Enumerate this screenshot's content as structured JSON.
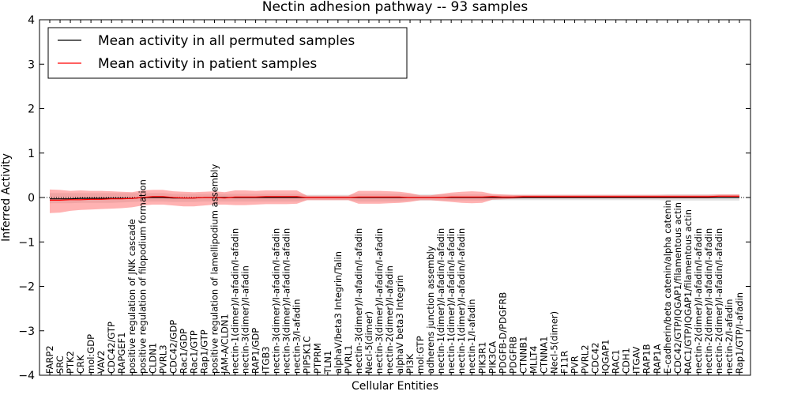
{
  "chart_data": {
    "type": "line",
    "title": "Nectin adhesion pathway -- 93 samples",
    "xlabel": "Cellular Entities",
    "ylabel": "Inferred Activity",
    "ylim": [
      -4,
      4
    ],
    "yticks": [
      "−4",
      "−3",
      "−2",
      "−1",
      "0",
      "1",
      "2",
      "3",
      "4"
    ],
    "legend": {
      "position": "top-left",
      "entries": [
        {
          "name": "Mean activity in all permuted samples",
          "color": "#000000"
        },
        {
          "name": "Mean activity in patient samples",
          "color": "#ff0000"
        }
      ]
    },
    "categories": [
      "FARP2",
      "SRC",
      "PTK2",
      "CRK",
      "mol:GDP",
      "VAV2",
      "CDC42/GTP",
      "RAPGEF1",
      "positive regulation of JNK cascade",
      "positive regulation of filopodium formation",
      "CLDN1",
      "PVRL3",
      "CDC42/GDP",
      "Rac1/GDP",
      "Rac1/GTP",
      "Rap1/GTP",
      "positive regulation of lamellipodium assembly",
      "JAM-A/CLDN1",
      "nectin-1(dimer)/I-afadin/I-afadin",
      "nectin-3(dimer)/I-afadin",
      "RAP1/GDP",
      "ITGB3",
      "nectin-3(dimer)/I-afadin/I-afadin",
      "nectin-3(dimer)/I-afadin/I-afadin",
      "nectin-3/I-afadin",
      "PIP5K1C",
      "PTPRM",
      "TLN1",
      "alphaV/beta3 Integrin/Talin",
      "PVRL1",
      "nectin-3(dimer)/I-afadin/I-afadin",
      "Necl-5(dimer)",
      "nectin-3(dimer)/I-afadin/I-afadin",
      "nectin-2(dimer)/I-afadin",
      "alphaV beta3 Integrin",
      "PI3K",
      "mol:GTP",
      "adherens junction assembly",
      "nectin-1(dimer)/I-afadin/I-afadin",
      "nectin-1(dimer)/I-afadin/I-afadin",
      "nectin-1(dimer)/I-afadin/I-afadin",
      "nectin-1/I-afadin",
      "PIK3R1",
      "PIK3CA",
      "PDGFB-D/PDGFRB",
      "PDGFRB",
      "CTNNB1",
      "MLLT4",
      "CTNNA1",
      "Necl-5(dimer)",
      "F11R",
      "PVR",
      "PVRL2",
      "CDC42",
      "IQGAP1",
      "RAC1",
      "CDH1",
      "ITGAV",
      "RAP1B",
      "RAP1A",
      "E-cadherin/beta catenin/alpha catenin",
      "CDC42/GTP/IQGAP1/filamentous actin",
      "RAC1/GTP/IQGAP1/filamentous actin",
      "nectin-2(dimer)/I-afadin/I-afadin",
      "nectin-2(dimer)/I-afadin/I-afadin",
      "nectin-2(dimer)/I-afadin/I-afadin",
      "nectin-2/I-afadin",
      "Rap1/GTP/I-afadin"
    ],
    "series": [
      {
        "name": "Mean activity in all permuted samples",
        "color": "#000000",
        "values": [
          -0.03,
          -0.03,
          -0.03,
          -0.02,
          -0.02,
          -0.02,
          -0.02,
          -0.02,
          -0.02,
          0.0,
          0.0,
          0.0,
          -0.01,
          -0.01,
          -0.01,
          0.0,
          0.0,
          0.0,
          0.0,
          0.0,
          0.0,
          0.0,
          0.0,
          0.0,
          0.0,
          0.0,
          0.0,
          0.0,
          0.0,
          0.0,
          0.0,
          0.0,
          0.0,
          0.0,
          0.0,
          0.0,
          0.0,
          0.0,
          0.0,
          0.0,
          0.0,
          0.0,
          0.0,
          0.0,
          0.0,
          0.0,
          0.0,
          0.0,
          0.0,
          0.0,
          0.0,
          0.0,
          0.0,
          0.0,
          0.0,
          0.0,
          0.0,
          0.0,
          0.0,
          0.0,
          0.0,
          0.0,
          0.0,
          0.0,
          0.0,
          0.0,
          0.0,
          0.0
        ],
        "band_lower": [
          -0.13,
          -0.13,
          -0.13,
          -0.12,
          -0.12,
          -0.12,
          -0.12,
          -0.11,
          -0.1,
          -0.09,
          -0.09,
          -0.09,
          -0.1,
          -0.1,
          -0.1,
          -0.09,
          -0.09,
          -0.09,
          -0.09,
          -0.09,
          -0.09,
          -0.09,
          -0.09,
          -0.09,
          -0.09,
          -0.06,
          -0.06,
          -0.06,
          -0.06,
          -0.06,
          -0.09,
          -0.09,
          -0.09,
          -0.09,
          -0.09,
          -0.07,
          -0.07,
          -0.07,
          -0.07,
          -0.07,
          -0.07,
          -0.07,
          -0.07,
          -0.06,
          -0.06,
          -0.06,
          -0.06,
          -0.06,
          -0.06,
          -0.06,
          -0.06,
          -0.06,
          -0.06,
          -0.06,
          -0.06,
          -0.06,
          -0.06,
          -0.06,
          -0.06,
          -0.06,
          -0.07,
          -0.07,
          -0.07,
          -0.07,
          -0.07,
          -0.07,
          -0.07,
          -0.07
        ],
        "band_upper": [
          0.1,
          0.1,
          0.1,
          0.1,
          0.1,
          0.1,
          0.1,
          0.1,
          0.1,
          0.1,
          0.1,
          0.1,
          0.08,
          0.08,
          0.08,
          0.08,
          0.08,
          0.08,
          0.08,
          0.08,
          0.08,
          0.08,
          0.08,
          0.08,
          0.08,
          0.06,
          0.06,
          0.06,
          0.06,
          0.06,
          0.08,
          0.08,
          0.08,
          0.08,
          0.08,
          0.07,
          0.07,
          0.07,
          0.07,
          0.07,
          0.07,
          0.07,
          0.07,
          0.06,
          0.06,
          0.06,
          0.06,
          0.06,
          0.06,
          0.06,
          0.06,
          0.06,
          0.06,
          0.06,
          0.06,
          0.06,
          0.06,
          0.06,
          0.06,
          0.06,
          0.07,
          0.07,
          0.07,
          0.07,
          0.07,
          0.07,
          0.07,
          0.07
        ]
      },
      {
        "name": "Mean activity in patient samples",
        "color": "#ff0000",
        "values": [
          -0.06,
          -0.06,
          -0.05,
          -0.05,
          -0.04,
          -0.04,
          -0.03,
          -0.03,
          -0.02,
          0.0,
          0.02,
          0.02,
          0.0,
          -0.01,
          -0.01,
          0.0,
          0.0,
          -0.01,
          0.01,
          0.01,
          0.01,
          0.02,
          0.02,
          0.02,
          0.02,
          0.0,
          0.0,
          0.0,
          0.0,
          0.0,
          0.01,
          0.01,
          0.01,
          0.01,
          0.01,
          0.0,
          0.0,
          0.0,
          0.0,
          0.01,
          0.01,
          0.01,
          0.01,
          0.02,
          0.01,
          0.01,
          0.02,
          0.02,
          0.02,
          0.02,
          0.02,
          0.02,
          0.02,
          0.02,
          0.02,
          0.02,
          0.02,
          0.02,
          0.02,
          0.02,
          0.02,
          0.02,
          0.02,
          0.02,
          0.02,
          0.03,
          0.03,
          0.03
        ],
        "band_lower": [
          -0.35,
          -0.34,
          -0.3,
          -0.28,
          -0.27,
          -0.26,
          -0.25,
          -0.24,
          -0.22,
          -0.18,
          -0.16,
          -0.16,
          -0.18,
          -0.2,
          -0.2,
          -0.18,
          -0.16,
          -0.16,
          -0.17,
          -0.17,
          -0.16,
          -0.15,
          -0.15,
          -0.15,
          -0.14,
          -0.06,
          -0.06,
          -0.06,
          -0.06,
          -0.06,
          -0.14,
          -0.14,
          -0.14,
          -0.13,
          -0.12,
          -0.1,
          -0.06,
          -0.06,
          -0.08,
          -0.1,
          -0.12,
          -0.13,
          -0.12,
          -0.05,
          -0.04,
          -0.03,
          -0.02,
          -0.02,
          -0.02,
          -0.02,
          -0.02,
          -0.02,
          -0.02,
          -0.02,
          -0.02,
          -0.02,
          -0.02,
          -0.02,
          -0.02,
          -0.02,
          -0.02,
          -0.02,
          -0.02,
          -0.02,
          -0.02,
          -0.01,
          -0.01,
          -0.01
        ],
        "band_upper": [
          0.18,
          0.17,
          0.15,
          0.16,
          0.15,
          0.15,
          0.14,
          0.13,
          0.12,
          0.16,
          0.17,
          0.17,
          0.14,
          0.13,
          0.12,
          0.13,
          0.14,
          0.12,
          0.16,
          0.16,
          0.15,
          0.16,
          0.16,
          0.16,
          0.16,
          0.04,
          0.04,
          0.04,
          0.04,
          0.04,
          0.15,
          0.15,
          0.15,
          0.14,
          0.13,
          0.1,
          0.05,
          0.05,
          0.08,
          0.11,
          0.13,
          0.14,
          0.13,
          0.08,
          0.07,
          0.06,
          0.06,
          0.06,
          0.06,
          0.06,
          0.06,
          0.06,
          0.06,
          0.06,
          0.06,
          0.06,
          0.06,
          0.06,
          0.06,
          0.06,
          0.06,
          0.06,
          0.06,
          0.06,
          0.06,
          0.07,
          0.07,
          0.07
        ]
      }
    ]
  }
}
